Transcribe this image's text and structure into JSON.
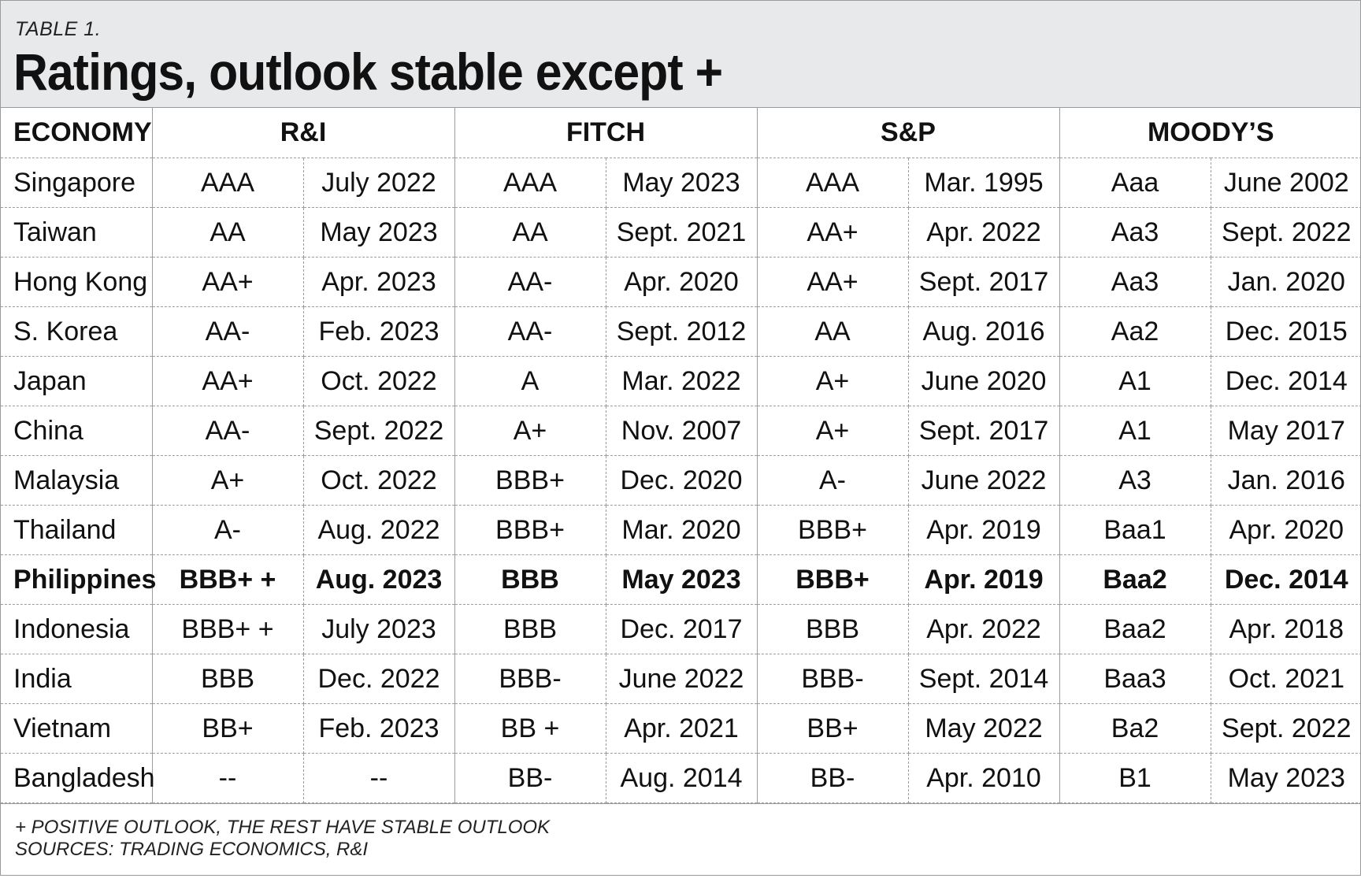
{
  "kicker": "TABLE 1.",
  "title": "Ratings, outlook stable except +",
  "headers": [
    "ECONOMY",
    "R&I",
    "FITCH",
    "S&P",
    "MOODY’S"
  ],
  "rows": [
    {
      "economy": "Singapore",
      "cells": [
        "AAA",
        "July 2022",
        "AAA",
        "May 2023",
        "AAA",
        "Mar. 1995",
        "Aaa",
        "June 2002"
      ]
    },
    {
      "economy": "Taiwan",
      "cells": [
        "AA",
        "May 2023",
        "AA",
        "Sept. 2021",
        "AA+",
        "Apr. 2022",
        "Aa3",
        "Sept. 2022"
      ]
    },
    {
      "economy": "Hong Kong",
      "cells": [
        "AA+",
        "Apr. 2023",
        "AA-",
        "Apr. 2020",
        "AA+",
        "Sept. 2017",
        "Aa3",
        "Jan. 2020"
      ]
    },
    {
      "economy": "S. Korea",
      "cells": [
        "AA-",
        "Feb. 2023",
        "AA-",
        "Sept. 2012",
        "AA",
        "Aug. 2016",
        "Aa2",
        "Dec. 2015"
      ]
    },
    {
      "economy": "Japan",
      "cells": [
        "AA+",
        "Oct. 2022",
        "A",
        "Mar. 2022",
        "A+",
        "June 2020",
        "A1",
        "Dec. 2014"
      ]
    },
    {
      "economy": "China",
      "cells": [
        "AA-",
        "Sept. 2022",
        "A+",
        "Nov. 2007",
        "A+",
        "Sept. 2017",
        "A1",
        "May 2017"
      ]
    },
    {
      "economy": "Malaysia",
      "cells": [
        "A+",
        "Oct. 2022",
        "BBB+",
        "Dec. 2020",
        "A-",
        "June 2022",
        "A3",
        "Jan. 2016"
      ]
    },
    {
      "economy": "Thailand",
      "cells": [
        "A-",
        "Aug. 2022",
        "BBB+",
        "Mar. 2020",
        "BBB+",
        "Apr. 2019",
        "Baa1",
        "Apr. 2020"
      ]
    },
    {
      "economy": "Philippines",
      "cells": [
        "BBB+ +",
        "Aug. 2023",
        "BBB",
        "May 2023",
        "BBB+",
        "Apr. 2019",
        "Baa2",
        "Dec. 2014"
      ]
    },
    {
      "economy": "Indonesia",
      "cells": [
        "BBB+ +",
        "July 2023",
        "BBB",
        "Dec. 2017",
        "BBB",
        "Apr. 2022",
        "Baa2",
        "Apr. 2018"
      ]
    },
    {
      "economy": "India",
      "cells": [
        "BBB",
        "Dec. 2022",
        "BBB-",
        "June 2022",
        "BBB-",
        "Sept. 2014",
        "Baa3",
        "Oct. 2021"
      ]
    },
    {
      "economy": "Vietnam",
      "cells": [
        "BB+",
        "Feb. 2023",
        "BB  +",
        "Apr. 2021",
        "BB+",
        "May 2022",
        "Ba2",
        "Sept. 2022"
      ]
    },
    {
      "economy": "Bangladesh",
      "cells": [
        "--",
        "--",
        "BB-",
        "Aug. 2014",
        "BB-",
        "Apr. 2010",
        "B1",
        "May 2023"
      ]
    }
  ],
  "footer": {
    "note": "+ POSITIVE OUTLOOK, THE REST HAVE STABLE OUTLOOK",
    "sources": "SOURCES: TRADING ECONOMICS, R&I"
  }
}
